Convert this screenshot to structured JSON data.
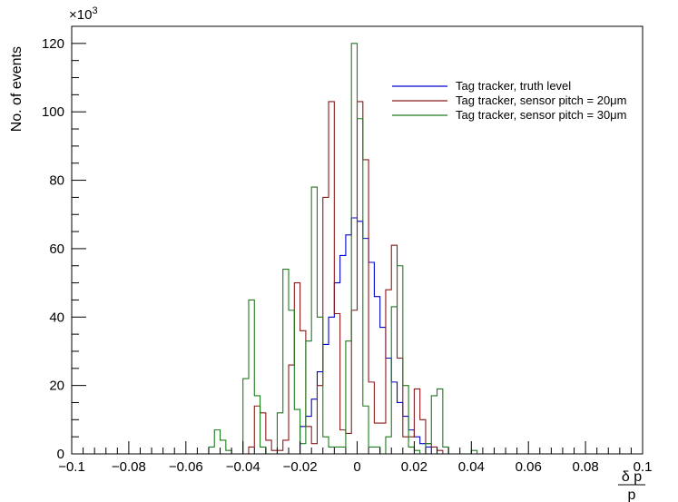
{
  "chart_data": {
    "type": "histogram-step",
    "xlabel_num": "δ p",
    "xlabel_den": "p",
    "ylabel": "No. of events",
    "y_multiplier": "×10",
    "y_multiplier_exp": "3",
    "xlim": [
      -0.1,
      0.1
    ],
    "ylim": [
      0,
      125
    ],
    "x_ticks": [
      -0.1,
      -0.08,
      -0.06,
      -0.04,
      -0.02,
      0,
      0.02,
      0.04,
      0.06,
      0.08,
      0.1
    ],
    "x_tick_labels": [
      "−0.1",
      "−0.08",
      "−0.06",
      "−0.04",
      "−0.02",
      "0",
      "0.02",
      "0.04",
      "0.06",
      "0.08",
      "0.1"
    ],
    "y_ticks": [
      0,
      20,
      40,
      60,
      80,
      100,
      120
    ],
    "y_tick_labels": [
      "0",
      "20",
      "40",
      "60",
      "80",
      "100",
      "120"
    ],
    "bin_width": 0.002,
    "legend_position": "top-right",
    "series": [
      {
        "name": "Tag tracker, truth level",
        "color": "#0000cc",
        "values": [
          {
            "x": -0.02,
            "y": 8
          },
          {
            "x": -0.018,
            "y": 11
          },
          {
            "x": -0.016,
            "y": 16
          },
          {
            "x": -0.014,
            "y": 24
          },
          {
            "x": -0.012,
            "y": 32
          },
          {
            "x": -0.01,
            "y": 40
          },
          {
            "x": -0.008,
            "y": 50
          },
          {
            "x": -0.006,
            "y": 58
          },
          {
            "x": -0.004,
            "y": 64
          },
          {
            "x": -0.002,
            "y": 69
          },
          {
            "x": 0.0,
            "y": 68
          },
          {
            "x": 0.002,
            "y": 63
          },
          {
            "x": 0.004,
            "y": 56
          },
          {
            "x": 0.006,
            "y": 46
          },
          {
            "x": 0.008,
            "y": 37
          },
          {
            "x": 0.01,
            "y": 28
          },
          {
            "x": 0.012,
            "y": 21
          },
          {
            "x": 0.014,
            "y": 15
          },
          {
            "x": 0.016,
            "y": 11
          },
          {
            "x": 0.018,
            "y": 7
          },
          {
            "x": 0.02,
            "y": 5
          },
          {
            "x": 0.022,
            "y": 3
          },
          {
            "x": 0.024,
            "y": 2
          }
        ]
      },
      {
        "name": "Tag tracker, sensor pitch = 20μm",
        "color": "#8b1a1a",
        "values": [
          {
            "x": -0.038,
            "y": 2
          },
          {
            "x": -0.036,
            "y": 14
          },
          {
            "x": -0.034,
            "y": 12
          },
          {
            "x": -0.032,
            "y": 4
          },
          {
            "x": -0.03,
            "y": 1
          },
          {
            "x": -0.028,
            "y": 1
          },
          {
            "x": -0.026,
            "y": 4
          },
          {
            "x": -0.024,
            "y": 26
          },
          {
            "x": -0.022,
            "y": 50
          },
          {
            "x": -0.02,
            "y": 36
          },
          {
            "x": -0.018,
            "y": 8
          },
          {
            "x": -0.016,
            "y": 3
          },
          {
            "x": -0.014,
            "y": 20
          },
          {
            "x": -0.012,
            "y": 75
          },
          {
            "x": -0.01,
            "y": 103
          },
          {
            "x": -0.008,
            "y": 41
          },
          {
            "x": -0.006,
            "y": 7
          },
          {
            "x": -0.004,
            "y": 6
          },
          {
            "x": -0.002,
            "y": 42
          },
          {
            "x": 0.0,
            "y": 103
          },
          {
            "x": 0.002,
            "y": 86
          },
          {
            "x": 0.004,
            "y": 21
          },
          {
            "x": 0.006,
            "y": 9
          },
          {
            "x": 0.008,
            "y": 9
          },
          {
            "x": 0.01,
            "y": 48
          },
          {
            "x": 0.012,
            "y": 61
          },
          {
            "x": 0.014,
            "y": 28
          },
          {
            "x": 0.016,
            "y": 5
          },
          {
            "x": 0.018,
            "y": 5
          },
          {
            "x": 0.02,
            "y": 19
          },
          {
            "x": 0.022,
            "y": 10
          },
          {
            "x": 0.024,
            "y": 3
          },
          {
            "x": 0.026,
            "y": 2
          },
          {
            "x": 0.028,
            "y": 1
          }
        ]
      },
      {
        "name": "Tag tracker, sensor pitch = 30μm",
        "color": "#1e7b1e",
        "values": [
          {
            "x": -0.052,
            "y": 2
          },
          {
            "x": -0.05,
            "y": 7
          },
          {
            "x": -0.048,
            "y": 4
          },
          {
            "x": -0.046,
            "y": 1
          },
          {
            "x": -0.04,
            "y": 22
          },
          {
            "x": -0.038,
            "y": 45
          },
          {
            "x": -0.036,
            "y": 17
          },
          {
            "x": -0.034,
            "y": 2
          },
          {
            "x": -0.028,
            "y": 12
          },
          {
            "x": -0.026,
            "y": 54
          },
          {
            "x": -0.024,
            "y": 42
          },
          {
            "x": -0.022,
            "y": 13
          },
          {
            "x": -0.02,
            "y": 3
          },
          {
            "x": -0.018,
            "y": 33
          },
          {
            "x": -0.016,
            "y": 78
          },
          {
            "x": -0.014,
            "y": 40
          },
          {
            "x": -0.012,
            "y": 5
          },
          {
            "x": -0.01,
            "y": 2
          },
          {
            "x": -0.008,
            "y": 2
          },
          {
            "x": -0.006,
            "y": 2
          },
          {
            "x": -0.004,
            "y": 33
          },
          {
            "x": -0.002,
            "y": 120
          },
          {
            "x": 0.0,
            "y": 98
          },
          {
            "x": 0.002,
            "y": 14
          },
          {
            "x": 0.004,
            "y": 2
          },
          {
            "x": 0.006,
            "y": 2
          },
          {
            "x": 0.01,
            "y": 5
          },
          {
            "x": 0.012,
            "y": 43
          },
          {
            "x": 0.014,
            "y": 55
          },
          {
            "x": 0.016,
            "y": 20
          },
          {
            "x": 0.018,
            "y": 2
          },
          {
            "x": 0.02,
            "y": 1
          },
          {
            "x": 0.024,
            "y": 3
          },
          {
            "x": 0.026,
            "y": 17
          },
          {
            "x": 0.028,
            "y": 19
          },
          {
            "x": 0.03,
            "y": 2
          },
          {
            "x": 0.04,
            "y": 1
          }
        ]
      }
    ]
  }
}
